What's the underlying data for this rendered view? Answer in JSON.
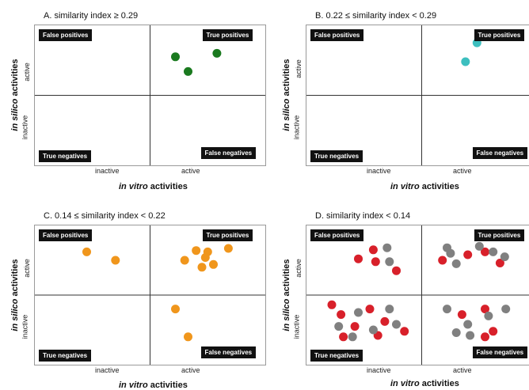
{
  "chart_data": [
    {
      "id": "A",
      "type": "scatter",
      "title": "A. similarity index ≥ 0.29",
      "xlabel_italic": "in vitro",
      "xlabel_rest": " activities",
      "ylabel_italic": "in silico",
      "ylabel_rest": " activities",
      "xticks": [
        "inactive",
        "active"
      ],
      "yticks": [
        "inactive",
        "active"
      ],
      "quadrants": {
        "top_left": "False positives",
        "top_right": "True positives",
        "bottom_left": "True negatives",
        "bottom_right": "False negatives"
      },
      "xlim": [
        0,
        2
      ],
      "ylim": [
        0,
        2
      ],
      "grid": false,
      "series": [
        {
          "color": "#1a7a1f",
          "points": [
            [
              1.22,
              1.55
            ],
            [
              1.33,
              1.34
            ],
            [
              1.58,
              1.6
            ]
          ]
        }
      ]
    },
    {
      "id": "B",
      "type": "scatter",
      "title": "B. 0.22 ≤ similarity index < 0.29",
      "xlabel_italic": "in vitro",
      "xlabel_rest": " activities",
      "ylabel_italic": "in silico",
      "ylabel_rest": " activities",
      "xticks": [
        "inactive",
        "active"
      ],
      "yticks": [
        "inactive",
        "active"
      ],
      "quadrants": {
        "top_left": "False positives",
        "top_right": "True positives",
        "bottom_left": "True negatives",
        "bottom_right": "False negatives"
      },
      "xlim": [
        0,
        2
      ],
      "ylim": [
        0,
        2
      ],
      "grid": false,
      "series": [
        {
          "color": "#3dbfbf",
          "points": [
            [
              1.38,
              1.48
            ],
            [
              1.48,
              1.75
            ]
          ]
        }
      ]
    },
    {
      "id": "C",
      "type": "scatter",
      "title": "C. 0.14 ≤ similarity index < 0.22",
      "xlabel_italic": "in vitro",
      "xlabel_rest": " activities",
      "ylabel_italic": "in silico",
      "ylabel_rest": " activities",
      "xticks": [
        "inactive",
        "active"
      ],
      "yticks": [
        "inactive",
        "active"
      ],
      "quadrants": {
        "top_left": "False positives",
        "top_right": "True positives",
        "bottom_left": "True negatives",
        "bottom_right": "False negatives"
      },
      "xlim": [
        0,
        2
      ],
      "ylim": [
        0,
        2
      ],
      "grid": false,
      "series": [
        {
          "color": "#f0961c",
          "points": [
            [
              0.45,
              1.62
            ],
            [
              0.7,
              1.5
            ],
            [
              1.3,
              1.5
            ],
            [
              1.4,
              1.64
            ],
            [
              1.45,
              1.4
            ],
            [
              1.5,
              1.62
            ],
            [
              1.55,
              1.44
            ],
            [
              1.68,
              1.67
            ],
            [
              1.48,
              1.54
            ],
            [
              1.22,
              0.8
            ],
            [
              1.33,
              0.4
            ]
          ]
        }
      ]
    },
    {
      "id": "D",
      "type": "scatter",
      "title": "D. similarity index < 0.14",
      "xlabel_italic": "in vitro",
      "xlabel_rest": " activities",
      "ylabel_italic": "in silico",
      "ylabel_rest": " activities",
      "xticks": [
        "inactive",
        "active"
      ],
      "yticks": [
        "inactive",
        "active"
      ],
      "quadrants": {
        "top_left": "False positives",
        "top_right": "True positives",
        "bottom_left": "True negatives",
        "bottom_right": "False negatives"
      },
      "xlim": [
        0,
        2
      ],
      "ylim": [
        0,
        2
      ],
      "grid": false,
      "series": [
        {
          "color": "#d8202a",
          "points": [
            [
              0.45,
              1.52
            ],
            [
              0.58,
              1.65
            ],
            [
              0.6,
              1.48
            ],
            [
              0.78,
              1.35
            ],
            [
              0.22,
              0.86
            ],
            [
              0.3,
              0.72
            ],
            [
              0.42,
              0.55
            ],
            [
              0.55,
              0.8
            ],
            [
              0.68,
              0.62
            ],
            [
              0.85,
              0.48
            ],
            [
              0.32,
              0.4
            ],
            [
              0.62,
              0.42
            ],
            [
              1.18,
              1.5
            ],
            [
              1.4,
              1.58
            ],
            [
              1.55,
              1.62
            ],
            [
              1.68,
              1.46
            ],
            [
              1.35,
              0.72
            ],
            [
              1.55,
              0.8
            ],
            [
              1.55,
              0.4
            ],
            [
              1.62,
              0.48
            ]
          ]
        },
        {
          "color": "#808080",
          "points": [
            [
              0.7,
              1.68
            ],
            [
              0.72,
              1.48
            ],
            [
              1.25,
              1.6
            ],
            [
              1.3,
              1.45
            ],
            [
              1.5,
              1.7
            ],
            [
              1.62,
              1.62
            ],
            [
              1.72,
              1.55
            ],
            [
              1.22,
              1.68
            ],
            [
              0.28,
              0.55
            ],
            [
              0.45,
              0.75
            ],
            [
              0.58,
              0.5
            ],
            [
              0.72,
              0.8
            ],
            [
              0.4,
              0.4
            ],
            [
              0.78,
              0.58
            ],
            [
              1.22,
              0.8
            ],
            [
              1.4,
              0.58
            ],
            [
              1.58,
              0.7
            ],
            [
              1.42,
              0.42
            ],
            [
              1.3,
              0.46
            ],
            [
              1.73,
              0.8
            ]
          ]
        }
      ]
    }
  ]
}
